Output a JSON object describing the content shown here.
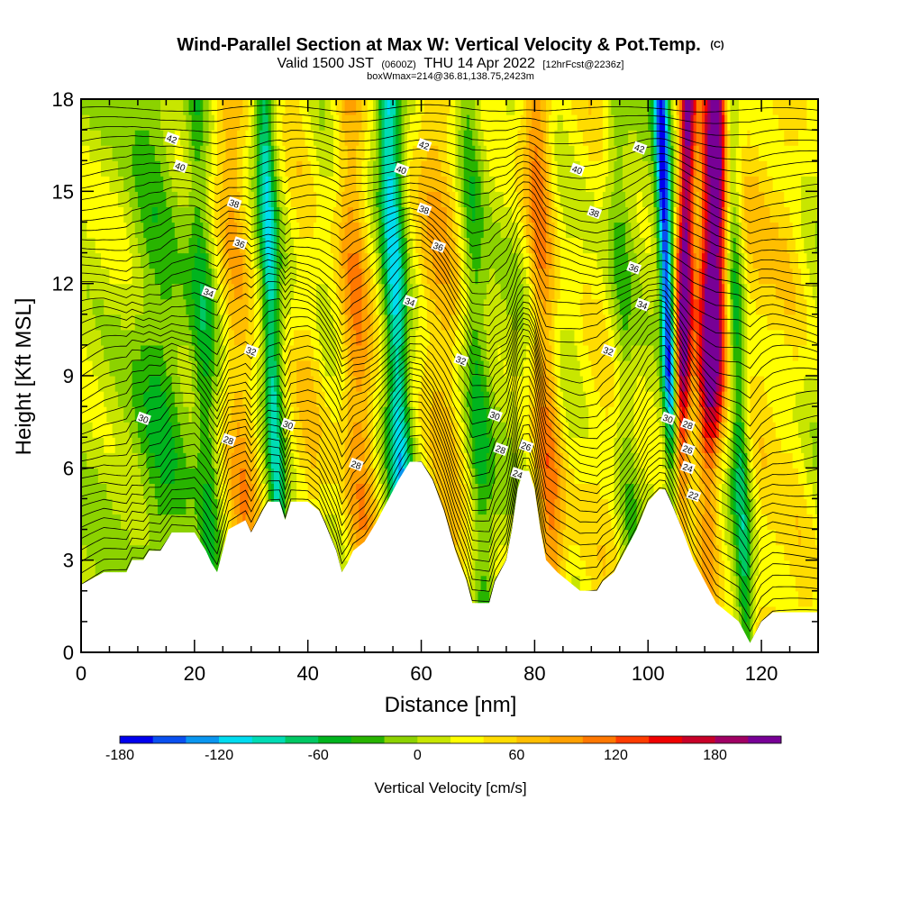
{
  "chart_data": {
    "type": "heatmap",
    "title": "Wind-Parallel Section at Max W: Vertical Velocity & Pot.Temp.",
    "title_mark": "(C)",
    "subtitle_parts": [
      "Valid 1500 JST",
      "(0600Z)",
      "THU 14 Apr 2022",
      "[12hrFcst@2236z]"
    ],
    "subtitle2": "boxWmax=214@36.81,138.75,2423m",
    "xlabel": "Distance [nm]",
    "ylabel": "Height [Kft MSL]",
    "xlim": [
      0,
      130
    ],
    "ylim": [
      0,
      18
    ],
    "x_ticks": [
      0,
      20,
      40,
      60,
      80,
      100,
      120
    ],
    "y_ticks": [
      0,
      3,
      6,
      9,
      12,
      15,
      18
    ],
    "colorbar": {
      "title": "Vertical Velocity [cm/s]",
      "min": -180,
      "max": 220,
      "ticks": [
        -180,
        -120,
        -60,
        0,
        60,
        120,
        180
      ],
      "colors": [
        "#0000ee",
        "#0a50f0",
        "#0a96f0",
        "#00dcf0",
        "#00dcb4",
        "#00c864",
        "#00b41e",
        "#28b400",
        "#8cd200",
        "#c8e600",
        "#ffff00",
        "#ffdc00",
        "#ffbe00",
        "#ffa000",
        "#ff7800",
        "#ff3c00",
        "#f00000",
        "#c80028",
        "#a00064",
        "#780096"
      ]
    },
    "terrain": [
      [
        0,
        2.2
      ],
      [
        4,
        2.6
      ],
      [
        8,
        2.6
      ],
      [
        9,
        3.0
      ],
      [
        11,
        3.0
      ],
      [
        12,
        3.3
      ],
      [
        14,
        3.3
      ],
      [
        15,
        3.6
      ],
      [
        16,
        3.9
      ],
      [
        20,
        3.9
      ],
      [
        21,
        3.6
      ],
      [
        22,
        3.3
      ],
      [
        23,
        2.9
      ],
      [
        24,
        2.6
      ],
      [
        25,
        3.3
      ],
      [
        26,
        4.0
      ],
      [
        28,
        4.2
      ],
      [
        29,
        4.3
      ],
      [
        30,
        3.9
      ],
      [
        32,
        4.6
      ],
      [
        33,
        4.9
      ],
      [
        35,
        4.9
      ],
      [
        36,
        4.3
      ],
      [
        37,
        4.9
      ],
      [
        40,
        4.9
      ],
      [
        42,
        4.6
      ],
      [
        43,
        4.2
      ],
      [
        45,
        3.3
      ],
      [
        46,
        2.6
      ],
      [
        47,
        2.9
      ],
      [
        48,
        3.3
      ],
      [
        50,
        3.6
      ],
      [
        52,
        4.2
      ],
      [
        54,
        4.9
      ],
      [
        56,
        5.6
      ],
      [
        58,
        6.2
      ],
      [
        60,
        6.2
      ],
      [
        62,
        5.6
      ],
      [
        64,
        4.6
      ],
      [
        66,
        3.3
      ],
      [
        68,
        2.3
      ],
      [
        69,
        1.6
      ],
      [
        72,
        1.6
      ],
      [
        73,
        2.3
      ],
      [
        75,
        3.0
      ],
      [
        76,
        4.0
      ],
      [
        77,
        5.3
      ],
      [
        78,
        5.9
      ],
      [
        79,
        5.9
      ],
      [
        80,
        5.3
      ],
      [
        81,
        4.0
      ],
      [
        82,
        3.0
      ],
      [
        84,
        2.6
      ],
      [
        86,
        2.3
      ],
      [
        88,
        2.0
      ],
      [
        91,
        2.0
      ],
      [
        92,
        2.3
      ],
      [
        94,
        2.6
      ],
      [
        96,
        3.3
      ],
      [
        98,
        4.0
      ],
      [
        100,
        4.9
      ],
      [
        102,
        5.3
      ],
      [
        103,
        5.3
      ],
      [
        104,
        4.9
      ],
      [
        106,
        4.0
      ],
      [
        108,
        3.0
      ],
      [
        110,
        2.3
      ],
      [
        112,
        1.6
      ],
      [
        114,
        1.3
      ],
      [
        116,
        1.0
      ],
      [
        118,
        0.3
      ],
      [
        120,
        1.0
      ],
      [
        122,
        1.3
      ],
      [
        124,
        1.3
      ],
      [
        126,
        1.3
      ],
      [
        130,
        1.3
      ]
    ],
    "w_features": [
      {
        "x": 111,
        "w": 220,
        "width": 2.5
      },
      {
        "x": 106,
        "w": 200,
        "width": 1.5
      },
      {
        "x": 104,
        "w": -180,
        "width": 1.2
      },
      {
        "x": 56,
        "w": -120,
        "width": 2.0
      },
      {
        "x": 34,
        "w": -100,
        "width": 1.5
      },
      {
        "x": 49,
        "w": 80,
        "width": 3.0
      },
      {
        "x": 82,
        "w": 90,
        "width": 2.5
      },
      {
        "x": 28,
        "w": 70,
        "width": 3.0
      },
      {
        "x": 64,
        "w": 60,
        "width": 4.0
      },
      {
        "x": 40,
        "w": 40,
        "width": 3.0
      },
      {
        "x": 14,
        "w": -40,
        "width": 4.0
      },
      {
        "x": 22,
        "w": -50,
        "width": 2.0
      },
      {
        "x": 70,
        "w": -50,
        "width": 2.0
      },
      {
        "x": 92,
        "w": 30,
        "width": 5.0
      },
      {
        "x": 120,
        "w": 40,
        "width": 4.0
      },
      {
        "x": 126,
        "w": 30,
        "width": 3.0
      },
      {
        "x": 96,
        "w": -40,
        "width": 2.0
      },
      {
        "x": 116,
        "w": -80,
        "width": 1.5
      }
    ],
    "contour_labels": [
      {
        "text": "42",
        "x": 16,
        "y": 16.7
      },
      {
        "text": "40",
        "x": 17.5,
        "y": 15.8
      },
      {
        "text": "38",
        "x": 27,
        "y": 14.6
      },
      {
        "text": "36",
        "x": 28,
        "y": 13.3
      },
      {
        "text": "34",
        "x": 22.5,
        "y": 11.7
      },
      {
        "text": "32",
        "x": 30,
        "y": 9.8
      },
      {
        "text": "30",
        "x": 11,
        "y": 7.6
      },
      {
        "text": "28",
        "x": 26,
        "y": 6.9
      },
      {
        "text": "42",
        "x": 60.5,
        "y": 16.5
      },
      {
        "text": "40",
        "x": 56.5,
        "y": 15.7
      },
      {
        "text": "38",
        "x": 60.5,
        "y": 14.4
      },
      {
        "text": "36",
        "x": 63,
        "y": 13.2
      },
      {
        "text": "34",
        "x": 58,
        "y": 11.4
      },
      {
        "text": "32",
        "x": 67,
        "y": 9.5
      },
      {
        "text": "30",
        "x": 36.5,
        "y": 7.4
      },
      {
        "text": "28",
        "x": 48.5,
        "y": 6.1
      },
      {
        "text": "30",
        "x": 73,
        "y": 7.7
      },
      {
        "text": "28",
        "x": 74,
        "y": 6.6
      },
      {
        "text": "26",
        "x": 78.5,
        "y": 6.7
      },
      {
        "text": "24",
        "x": 77,
        "y": 5.8
      },
      {
        "text": "42",
        "x": 98.5,
        "y": 16.4
      },
      {
        "text": "40",
        "x": 87.5,
        "y": 15.7
      },
      {
        "text": "38",
        "x": 90.5,
        "y": 14.3
      },
      {
        "text": "36",
        "x": 97.5,
        "y": 12.5
      },
      {
        "text": "34",
        "x": 99,
        "y": 11.3
      },
      {
        "text": "32",
        "x": 93,
        "y": 9.8
      },
      {
        "text": "30",
        "x": 103.5,
        "y": 7.6
      },
      {
        "text": "28",
        "x": 107,
        "y": 7.4
      },
      {
        "text": "26",
        "x": 107,
        "y": 6.6
      },
      {
        "text": "24",
        "x": 107,
        "y": 6.0
      },
      {
        "text": "22",
        "x": 108,
        "y": 5.1
      }
    ]
  }
}
